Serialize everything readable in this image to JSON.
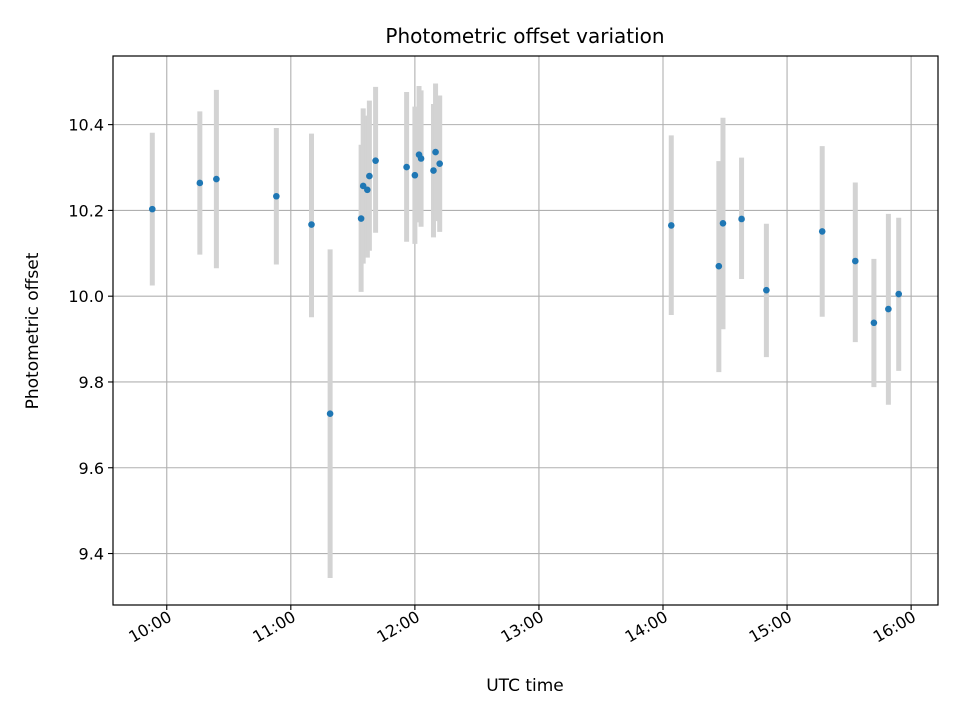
{
  "chart_data": {
    "type": "scatter",
    "title": "Photometric offset variation",
    "xlabel": "UTC time",
    "ylabel": "Photometric offset",
    "x_ticks": [
      "10:00",
      "11:00",
      "12:00",
      "13:00",
      "14:00",
      "15:00",
      "16:00"
    ],
    "y_ticks": [
      "9.4",
      "9.6",
      "9.8",
      "10.0",
      "10.2",
      "10.4"
    ],
    "xlim": [
      "09:34",
      "16:13"
    ],
    "ylim": [
      9.28,
      10.56
    ],
    "grid": true,
    "marker_color": "#1f77b4",
    "errorbar_color": "#d3d3d3",
    "points": [
      {
        "t": "09:53",
        "y": 10.203,
        "lo": 10.025,
        "hi": 10.381
      },
      {
        "t": "10:16",
        "y": 10.264,
        "lo": 10.097,
        "hi": 10.431
      },
      {
        "t": "10:24",
        "y": 10.273,
        "lo": 10.065,
        "hi": 10.481
      },
      {
        "t": "10:53",
        "y": 10.233,
        "lo": 10.074,
        "hi": 10.392
      },
      {
        "t": "11:10",
        "y": 10.167,
        "lo": 9.951,
        "hi": 10.379
      },
      {
        "t": "11:19",
        "y": 9.726,
        "lo": 9.343,
        "hi": 10.109
      },
      {
        "t": "11:34",
        "y": 10.181,
        "lo": 10.01,
        "hi": 10.353
      },
      {
        "t": "11:35",
        "y": 10.257,
        "lo": 10.076,
        "hi": 10.438
      },
      {
        "t": "11:37",
        "y": 10.248,
        "lo": 10.09,
        "hi": 10.421
      },
      {
        "t": "11:38",
        "y": 10.28,
        "lo": 10.106,
        "hi": 10.456
      },
      {
        "t": "11:41",
        "y": 10.316,
        "lo": 10.148,
        "hi": 10.488
      },
      {
        "t": "11:56",
        "y": 10.301,
        "lo": 10.127,
        "hi": 10.476
      },
      {
        "t": "12:00",
        "y": 10.282,
        "lo": 10.122,
        "hi": 10.442
      },
      {
        "t": "12:02",
        "y": 10.33,
        "lo": 10.172,
        "hi": 10.49
      },
      {
        "t": "12:03",
        "y": 10.321,
        "lo": 10.162,
        "hi": 10.48
      },
      {
        "t": "12:09",
        "y": 10.293,
        "lo": 10.137,
        "hi": 10.448
      },
      {
        "t": "12:10",
        "y": 10.336,
        "lo": 10.175,
        "hi": 10.496
      },
      {
        "t": "12:12",
        "y": 10.309,
        "lo": 10.15,
        "hi": 10.468
      },
      {
        "t": "14:04",
        "y": 10.165,
        "lo": 9.956,
        "hi": 10.375
      },
      {
        "t": "14:27",
        "y": 10.07,
        "lo": 9.823,
        "hi": 10.315
      },
      {
        "t": "14:29",
        "y": 10.17,
        "lo": 9.923,
        "hi": 10.416
      },
      {
        "t": "14:38",
        "y": 10.18,
        "lo": 10.04,
        "hi": 10.323
      },
      {
        "t": "14:50",
        "y": 10.014,
        "lo": 9.858,
        "hi": 10.169
      },
      {
        "t": "15:17",
        "y": 10.151,
        "lo": 9.952,
        "hi": 10.35
      },
      {
        "t": "15:33",
        "y": 10.082,
        "lo": 9.893,
        "hi": 10.265
      },
      {
        "t": "15:42",
        "y": 9.938,
        "lo": 9.788,
        "hi": 10.087
      },
      {
        "t": "15:49",
        "y": 9.97,
        "lo": 9.747,
        "hi": 10.192
      },
      {
        "t": "15:54",
        "y": 10.005,
        "lo": 9.826,
        "hi": 10.183
      }
    ]
  }
}
